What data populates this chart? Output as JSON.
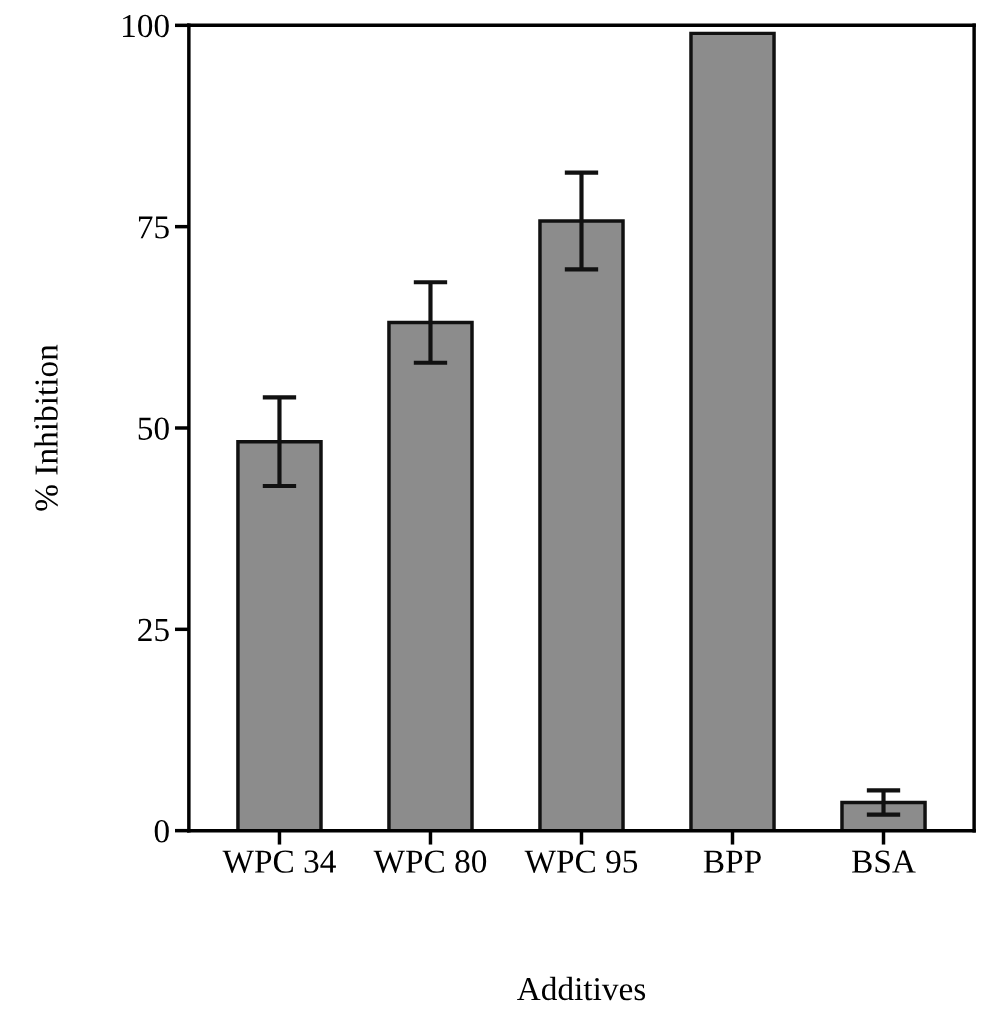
{
  "chart_data": {
    "type": "bar",
    "xlabel": "Additives",
    "ylabel": "% Inhibition",
    "categories": [
      "WPC 34",
      "WPC 80",
      "WPC 95",
      "BPP",
      "BSA"
    ],
    "values": [
      48.3,
      63.1,
      75.7,
      99.0,
      3.5
    ],
    "errors": [
      5.5,
      5,
      6,
      null,
      1.5
    ],
    "color": "#8c8c8c",
    "ylim": [
      0,
      100
    ],
    "yticks": [
      0,
      25,
      50,
      75,
      100
    ],
    "grid": false
  }
}
